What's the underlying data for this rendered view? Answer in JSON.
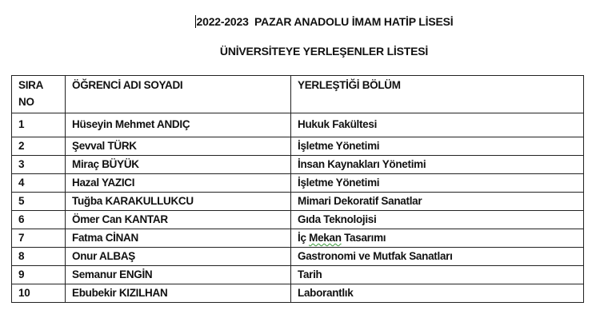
{
  "document": {
    "title": "2022-2023  PAZAR ANADOLU İMAM HATİP LİSESİ",
    "subtitle": "ÜNİVERSİTEYE YERLEŞENLER LİSTESİ",
    "table": {
      "headers": [
        "SIRA NO",
        "ÖĞRENCİ ADI SOYADI",
        "YERLEŞTİĞİ BÖLÜM"
      ],
      "rows": [
        [
          "1",
          "Hüseyin Mehmet ANDIÇ",
          "Hukuk Fakültesi"
        ],
        [
          "2",
          "Şevval TÜRK",
          "İşletme Yönetimi"
        ],
        [
          "3",
          "Miraç BÜYÜK",
          "İnsan Kaynakları Yönetimi"
        ],
        [
          "4",
          "Hazal YAZICI",
          "İşletme Yönetimi"
        ],
        [
          "5",
          "Tuğba KARAKULLUKCU",
          "Mimari Dekoratif Sanatlar"
        ],
        [
          "6",
          "Ömer Can KANTAR",
          "Gıda Teknolojisi"
        ],
        [
          "7",
          "Fatma CİNAN",
          "İç Mekan Tasarımı"
        ],
        [
          "8",
          "Onur ALBAŞ",
          "Gastronomi ve Mutfak Sanatları"
        ],
        [
          "9",
          "Semanur ENGİN",
          "Tarih"
        ],
        [
          "10",
          "Ebubekir KIZILHAN",
          "Laborantlık"
        ]
      ]
    }
  }
}
